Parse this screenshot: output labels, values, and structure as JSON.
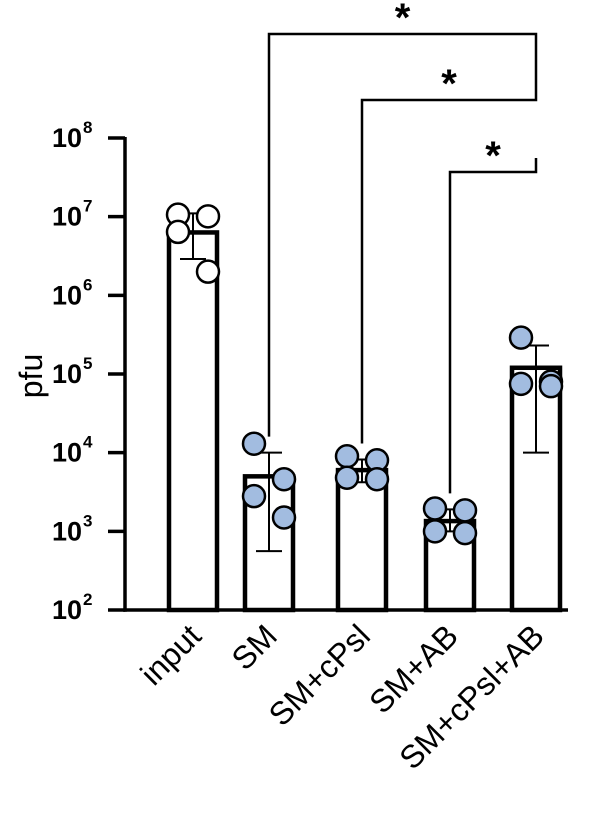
{
  "chart_data": {
    "type": "bar",
    "yscale": "log",
    "ylim": [
      100,
      100000000
    ],
    "ylabel": "pfu",
    "yticks": [
      {
        "value": 100,
        "base": "10",
        "exp": "2"
      },
      {
        "value": 1000,
        "base": "10",
        "exp": "3"
      },
      {
        "value": 10000,
        "base": "10",
        "exp": "4"
      },
      {
        "value": 100000,
        "base": "10",
        "exp": "5"
      },
      {
        "value": 1000000,
        "base": "10",
        "exp": "6"
      },
      {
        "value": 10000000,
        "base": "10",
        "exp": "7"
      },
      {
        "value": 100000000,
        "base": "10",
        "exp": "8"
      }
    ],
    "categories": [
      "input",
      "SM",
      "SM+cPsl",
      "SM+AB",
      "SM+cPsl+AB"
    ],
    "bars": [
      {
        "category": "input",
        "mean": 6300000,
        "err_low": 2900000,
        "err_high": 11000000,
        "points": [
          10600000,
          10100000,
          6400000,
          2000000
        ],
        "point_color": "#ffffff"
      },
      {
        "category": "SM",
        "mean": 5000,
        "err_low": 560,
        "err_high": 10000,
        "points": [
          13000,
          4600,
          2800,
          1500
        ],
        "point_color": "#a2bce0"
      },
      {
        "category": "SM+cPsl",
        "mean": 6000,
        "err_low": 4200,
        "err_high": 8200,
        "points": [
          9000,
          8000,
          4800,
          4600
        ],
        "point_color": "#a2bce0"
      },
      {
        "category": "SM+AB",
        "mean": 1350,
        "err_low": 1000,
        "err_high": 1900,
        "points": [
          1950,
          1850,
          1000,
          950
        ],
        "point_color": "#a2bce0"
      },
      {
        "category": "SM+cPsl+AB",
        "mean": 120000,
        "err_low": 10000,
        "err_high": 230000,
        "points": [
          290000,
          80000,
          75000,
          70000
        ],
        "point_color": "#a2bce0"
      }
    ],
    "comparisons": [
      {
        "from": "SM+AB",
        "to": "SM+cPsl+AB",
        "label": "*"
      },
      {
        "from": "SM+cPsl",
        "to": "SM+cPsl+AB",
        "label": "*"
      },
      {
        "from": "SM",
        "to": "SM+cPsl+AB",
        "label": "*"
      }
    ]
  }
}
